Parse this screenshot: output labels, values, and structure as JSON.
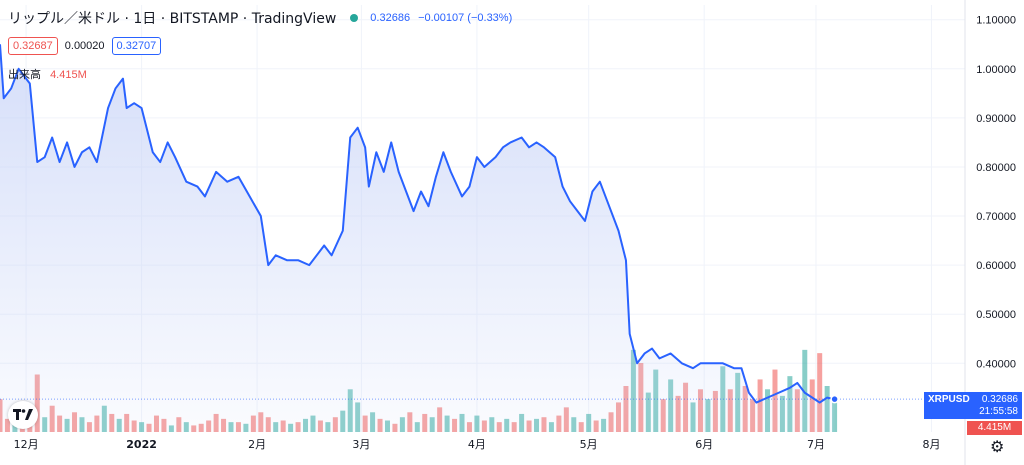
{
  "header": {
    "symbol_title": "リップル／米ドル · 1日 · BITSTAMP · TradingView",
    "status_dot_color": "#26a69a",
    "last_price": "0.32686",
    "change": "−0.00107 (−0.33%)",
    "change_color": "#2962ff"
  },
  "ohlc": {
    "bid": "0.32687",
    "spread": "0.00020",
    "ask": "0.32707",
    "bid_color": "#ef5350",
    "ask_color": "#2962ff"
  },
  "volume_legend": {
    "label": "出来高",
    "value": "4.415M",
    "color": "#ef5350"
  },
  "price_badge": {
    "symbol": "XRPUSD",
    "price": "0.32686",
    "countdown": "21:55:58",
    "color": "#2962ff"
  },
  "volume_badge": {
    "value": "4.415M",
    "color": "#ef5350"
  },
  "icons": {
    "logo": "tradingview-logo-icon",
    "settings": "gear-icon"
  },
  "chart_data": {
    "type": "area",
    "title": "リップル／米ドル · 1日 · BITSTAMP · TradingView",
    "line_color": "#2962ff",
    "area_color": "#c7d3f7",
    "up_volume_color": "#26a69a",
    "down_volume_color": "#ef5350",
    "y_ticks": [
      "1.10000",
      "1.00000",
      "0.90000",
      "0.80000",
      "0.70000",
      "0.60000",
      "0.50000",
      "0.40000"
    ],
    "y_tick_values": [
      1.1,
      1.0,
      0.9,
      0.8,
      0.7,
      0.6,
      0.5,
      0.4
    ],
    "ylim": [
      0.26,
      1.13
    ],
    "x_ticks": [
      "12月",
      "2022",
      "2月",
      "3月",
      "4月",
      "5月",
      "6月",
      "7月",
      "8月"
    ],
    "x_tick_values": [
      "2021-12-01",
      "2022-01-01",
      "2022-02-01",
      "2022-03-01",
      "2022-04-01",
      "2022-05-01",
      "2022-06-01",
      "2022-07-01",
      "2022-08-01"
    ],
    "xlim": [
      "2021-11-24",
      "2022-08-10"
    ],
    "grid": true,
    "series": [
      {
        "values": [
          [
            "2021-11-24",
            1.05
          ],
          [
            "2021-11-25",
            0.94
          ],
          [
            "2021-11-27",
            0.96
          ],
          [
            "2021-11-29",
            1.0
          ],
          [
            "2021-11-30",
            0.99
          ],
          [
            "2021-12-02",
            0.97
          ],
          [
            "2021-12-04",
            0.81
          ],
          [
            "2021-12-06",
            0.82
          ],
          [
            "2021-12-08",
            0.86
          ],
          [
            "2021-12-10",
            0.81
          ],
          [
            "2021-12-12",
            0.85
          ],
          [
            "2021-12-14",
            0.8
          ],
          [
            "2021-12-16",
            0.83
          ],
          [
            "2021-12-18",
            0.84
          ],
          [
            "2021-12-20",
            0.81
          ],
          [
            "2021-12-23",
            0.92
          ],
          [
            "2021-12-25",
            0.96
          ],
          [
            "2021-12-27",
            0.98
          ],
          [
            "2021-12-28",
            0.92
          ],
          [
            "2021-12-30",
            0.93
          ],
          [
            "2022-01-01",
            0.92
          ],
          [
            "2022-01-04",
            0.83
          ],
          [
            "2022-01-06",
            0.81
          ],
          [
            "2022-01-08",
            0.85
          ],
          [
            "2022-01-10",
            0.82
          ],
          [
            "2022-01-13",
            0.77
          ],
          [
            "2022-01-16",
            0.76
          ],
          [
            "2022-01-18",
            0.74
          ],
          [
            "2022-01-21",
            0.79
          ],
          [
            "2022-01-24",
            0.77
          ],
          [
            "2022-01-27",
            0.78
          ],
          [
            "2022-01-30",
            0.74
          ],
          [
            "2022-02-02",
            0.7
          ],
          [
            "2022-02-04",
            0.6
          ],
          [
            "2022-02-06",
            0.62
          ],
          [
            "2022-02-09",
            0.61
          ],
          [
            "2022-02-12",
            0.61
          ],
          [
            "2022-02-15",
            0.6
          ],
          [
            "2022-02-17",
            0.62
          ],
          [
            "2022-02-19",
            0.64
          ],
          [
            "2022-02-21",
            0.62
          ],
          [
            "2022-02-24",
            0.67
          ],
          [
            "2022-02-26",
            0.86
          ],
          [
            "2022-02-28",
            0.88
          ],
          [
            "2022-03-02",
            0.84
          ],
          [
            "2022-03-03",
            0.76
          ],
          [
            "2022-03-05",
            0.83
          ],
          [
            "2022-03-07",
            0.79
          ],
          [
            "2022-03-09",
            0.85
          ],
          [
            "2022-03-11",
            0.79
          ],
          [
            "2022-03-13",
            0.75
          ],
          [
            "2022-03-15",
            0.71
          ],
          [
            "2022-03-17",
            0.75
          ],
          [
            "2022-03-19",
            0.72
          ],
          [
            "2022-03-21",
            0.78
          ],
          [
            "2022-03-23",
            0.83
          ],
          [
            "2022-03-25",
            0.79
          ],
          [
            "2022-03-28",
            0.74
          ],
          [
            "2022-03-30",
            0.76
          ],
          [
            "2022-04-01",
            0.82
          ],
          [
            "2022-04-03",
            0.8
          ],
          [
            "2022-04-06",
            0.82
          ],
          [
            "2022-04-08",
            0.84
          ],
          [
            "2022-04-10",
            0.85
          ],
          [
            "2022-04-13",
            0.86
          ],
          [
            "2022-04-15",
            0.84
          ],
          [
            "2022-04-17",
            0.85
          ],
          [
            "2022-04-19",
            0.84
          ],
          [
            "2022-04-22",
            0.82
          ],
          [
            "2022-04-24",
            0.76
          ],
          [
            "2022-04-26",
            0.73
          ],
          [
            "2022-04-28",
            0.71
          ],
          [
            "2022-04-30",
            0.69
          ],
          [
            "2022-05-02",
            0.75
          ],
          [
            "2022-05-04",
            0.77
          ],
          [
            "2022-05-06",
            0.73
          ],
          [
            "2022-05-09",
            0.67
          ],
          [
            "2022-05-11",
            0.61
          ],
          [
            "2022-05-12",
            0.46
          ],
          [
            "2022-05-14",
            0.4
          ],
          [
            "2022-05-16",
            0.42
          ],
          [
            "2022-05-18",
            0.43
          ],
          [
            "2022-05-20",
            0.41
          ],
          [
            "2022-05-23",
            0.42
          ],
          [
            "2022-05-26",
            0.4
          ],
          [
            "2022-05-29",
            0.39
          ],
          [
            "2022-05-31",
            0.4
          ],
          [
            "2022-06-03",
            0.4
          ],
          [
            "2022-06-06",
            0.4
          ],
          [
            "2022-06-09",
            0.39
          ],
          [
            "2022-06-11",
            0.39
          ],
          [
            "2022-06-13",
            0.34
          ],
          [
            "2022-06-15",
            0.32
          ],
          [
            "2022-06-18",
            0.33
          ],
          [
            "2022-06-21",
            0.34
          ],
          [
            "2022-06-24",
            0.35
          ],
          [
            "2022-06-26",
            0.36
          ],
          [
            "2022-06-28",
            0.34
          ],
          [
            "2022-06-30",
            0.33
          ],
          [
            "2022-07-02",
            0.32
          ],
          [
            "2022-07-04",
            0.33
          ],
          [
            "2022-07-06",
            0.32686
          ]
        ]
      }
    ],
    "volume": [
      {
        "d": "2021-11-24",
        "v": 1.0,
        "up": false
      },
      {
        "d": "2021-11-26",
        "v": 0.4,
        "up": false
      },
      {
        "d": "2021-11-28",
        "v": 0.55,
        "up": true
      },
      {
        "d": "2021-11-30",
        "v": 0.35,
        "up": false
      },
      {
        "d": "2021-12-02",
        "v": 0.3,
        "up": false
      },
      {
        "d": "2021-12-04",
        "v": 1.75,
        "up": false
      },
      {
        "d": "2021-12-06",
        "v": 0.45,
        "up": true
      },
      {
        "d": "2021-12-08",
        "v": 0.8,
        "up": false
      },
      {
        "d": "2021-12-10",
        "v": 0.5,
        "up": false
      },
      {
        "d": "2021-12-12",
        "v": 0.4,
        "up": true
      },
      {
        "d": "2021-12-14",
        "v": 0.6,
        "up": false
      },
      {
        "d": "2021-12-16",
        "v": 0.45,
        "up": true
      },
      {
        "d": "2021-12-18",
        "v": 0.3,
        "up": false
      },
      {
        "d": "2021-12-20",
        "v": 0.5,
        "up": false
      },
      {
        "d": "2021-12-22",
        "v": 0.8,
        "up": true
      },
      {
        "d": "2021-12-24",
        "v": 0.55,
        "up": false
      },
      {
        "d": "2021-12-26",
        "v": 0.4,
        "up": true
      },
      {
        "d": "2021-12-28",
        "v": 0.55,
        "up": false
      },
      {
        "d": "2021-12-30",
        "v": 0.35,
        "up": false
      },
      {
        "d": "2022-01-01",
        "v": 0.3,
        "up": true
      },
      {
        "d": "2022-01-03",
        "v": 0.25,
        "up": false
      },
      {
        "d": "2022-01-05",
        "v": 0.5,
        "up": false
      },
      {
        "d": "2022-01-07",
        "v": 0.4,
        "up": false
      },
      {
        "d": "2022-01-09",
        "v": 0.2,
        "up": true
      },
      {
        "d": "2022-01-11",
        "v": 0.45,
        "up": false
      },
      {
        "d": "2022-01-13",
        "v": 0.3,
        "up": true
      },
      {
        "d": "2022-01-15",
        "v": 0.2,
        "up": false
      },
      {
        "d": "2022-01-17",
        "v": 0.25,
        "up": false
      },
      {
        "d": "2022-01-19",
        "v": 0.35,
        "up": false
      },
      {
        "d": "2022-01-21",
        "v": 0.55,
        "up": false
      },
      {
        "d": "2022-01-23",
        "v": 0.4,
        "up": false
      },
      {
        "d": "2022-01-25",
        "v": 0.3,
        "up": true
      },
      {
        "d": "2022-01-27",
        "v": 0.3,
        "up": false
      },
      {
        "d": "2022-01-29",
        "v": 0.25,
        "up": true
      },
      {
        "d": "2022-01-31",
        "v": 0.5,
        "up": false
      },
      {
        "d": "2022-02-02",
        "v": 0.6,
        "up": false
      },
      {
        "d": "2022-02-04",
        "v": 0.45,
        "up": false
      },
      {
        "d": "2022-02-06",
        "v": 0.3,
        "up": true
      },
      {
        "d": "2022-02-08",
        "v": 0.35,
        "up": false
      },
      {
        "d": "2022-02-10",
        "v": 0.25,
        "up": true
      },
      {
        "d": "2022-02-12",
        "v": 0.3,
        "up": false
      },
      {
        "d": "2022-02-14",
        "v": 0.4,
        "up": true
      },
      {
        "d": "2022-02-16",
        "v": 0.5,
        "up": true
      },
      {
        "d": "2022-02-18",
        "v": 0.35,
        "up": false
      },
      {
        "d": "2022-02-20",
        "v": 0.3,
        "up": true
      },
      {
        "d": "2022-02-22",
        "v": 0.45,
        "up": false
      },
      {
        "d": "2022-02-24",
        "v": 0.65,
        "up": true
      },
      {
        "d": "2022-02-26",
        "v": 1.3,
        "up": true
      },
      {
        "d": "2022-02-28",
        "v": 0.9,
        "up": true
      },
      {
        "d": "2022-03-02",
        "v": 0.5,
        "up": false
      },
      {
        "d": "2022-03-04",
        "v": 0.6,
        "up": true
      },
      {
        "d": "2022-03-06",
        "v": 0.4,
        "up": false
      },
      {
        "d": "2022-03-08",
        "v": 0.35,
        "up": true
      },
      {
        "d": "2022-03-10",
        "v": 0.25,
        "up": false
      },
      {
        "d": "2022-03-12",
        "v": 0.45,
        "up": true
      },
      {
        "d": "2022-03-14",
        "v": 0.6,
        "up": false
      },
      {
        "d": "2022-03-16",
        "v": 0.3,
        "up": true
      },
      {
        "d": "2022-03-18",
        "v": 0.55,
        "up": false
      },
      {
        "d": "2022-03-20",
        "v": 0.45,
        "up": true
      },
      {
        "d": "2022-03-22",
        "v": 0.75,
        "up": false
      },
      {
        "d": "2022-03-24",
        "v": 0.5,
        "up": true
      },
      {
        "d": "2022-03-26",
        "v": 0.4,
        "up": false
      },
      {
        "d": "2022-03-28",
        "v": 0.55,
        "up": true
      },
      {
        "d": "2022-03-30",
        "v": 0.3,
        "up": false
      },
      {
        "d": "2022-04-01",
        "v": 0.5,
        "up": true
      },
      {
        "d": "2022-04-03",
        "v": 0.35,
        "up": false
      },
      {
        "d": "2022-04-05",
        "v": 0.45,
        "up": true
      },
      {
        "d": "2022-04-07",
        "v": 0.3,
        "up": false
      },
      {
        "d": "2022-04-09",
        "v": 0.4,
        "up": true
      },
      {
        "d": "2022-04-11",
        "v": 0.3,
        "up": false
      },
      {
        "d": "2022-04-13",
        "v": 0.55,
        "up": true
      },
      {
        "d": "2022-04-15",
        "v": 0.35,
        "up": false
      },
      {
        "d": "2022-04-17",
        "v": 0.4,
        "up": true
      },
      {
        "d": "2022-04-19",
        "v": 0.45,
        "up": false
      },
      {
        "d": "2022-04-21",
        "v": 0.3,
        "up": true
      },
      {
        "d": "2022-04-23",
        "v": 0.5,
        "up": false
      },
      {
        "d": "2022-04-25",
        "v": 0.75,
        "up": false
      },
      {
        "d": "2022-04-27",
        "v": 0.45,
        "up": true
      },
      {
        "d": "2022-04-29",
        "v": 0.3,
        "up": false
      },
      {
        "d": "2022-05-01",
        "v": 0.55,
        "up": true
      },
      {
        "d": "2022-05-03",
        "v": 0.35,
        "up": false
      },
      {
        "d": "2022-05-05",
        "v": 0.4,
        "up": true
      },
      {
        "d": "2022-05-07",
        "v": 0.6,
        "up": false
      },
      {
        "d": "2022-05-09",
        "v": 0.9,
        "up": false
      },
      {
        "d": "2022-05-11",
        "v": 1.4,
        "up": false
      },
      {
        "d": "2022-05-13",
        "v": 2.5,
        "up": true
      },
      {
        "d": "2022-05-15",
        "v": 2.1,
        "up": false
      },
      {
        "d": "2022-05-17",
        "v": 1.2,
        "up": true
      },
      {
        "d": "2022-05-19",
        "v": 1.9,
        "up": true
      },
      {
        "d": "2022-05-21",
        "v": 1.0,
        "up": false
      },
      {
        "d": "2022-05-23",
        "v": 1.6,
        "up": true
      },
      {
        "d": "2022-05-25",
        "v": 1.1,
        "up": false
      },
      {
        "d": "2022-05-27",
        "v": 1.5,
        "up": false
      },
      {
        "d": "2022-05-29",
        "v": 0.9,
        "up": true
      },
      {
        "d": "2022-05-31",
        "v": 1.3,
        "up": false
      },
      {
        "d": "2022-06-02",
        "v": 1.0,
        "up": true
      },
      {
        "d": "2022-06-04",
        "v": 1.25,
        "up": false
      },
      {
        "d": "2022-06-06",
        "v": 2.0,
        "up": true
      },
      {
        "d": "2022-06-08",
        "v": 1.3,
        "up": false
      },
      {
        "d": "2022-06-10",
        "v": 1.8,
        "up": true
      },
      {
        "d": "2022-06-12",
        "v": 1.4,
        "up": false
      },
      {
        "d": "2022-06-14",
        "v": 1.0,
        "up": false
      },
      {
        "d": "2022-06-16",
        "v": 1.6,
        "up": false
      },
      {
        "d": "2022-06-18",
        "v": 1.3,
        "up": true
      },
      {
        "d": "2022-06-20",
        "v": 1.9,
        "up": false
      },
      {
        "d": "2022-06-22",
        "v": 1.1,
        "up": true
      },
      {
        "d": "2022-06-24",
        "v": 1.7,
        "up": true
      },
      {
        "d": "2022-06-26",
        "v": 1.3,
        "up": false
      },
      {
        "d": "2022-06-28",
        "v": 2.5,
        "up": true
      },
      {
        "d": "2022-06-30",
        "v": 1.6,
        "up": false
      },
      {
        "d": "2022-07-02",
        "v": 2.4,
        "up": false
      },
      {
        "d": "2022-07-04",
        "v": 1.4,
        "up": true
      },
      {
        "d": "2022-07-06",
        "v": 0.9,
        "up": true
      }
    ],
    "volume_max": 2.8
  }
}
